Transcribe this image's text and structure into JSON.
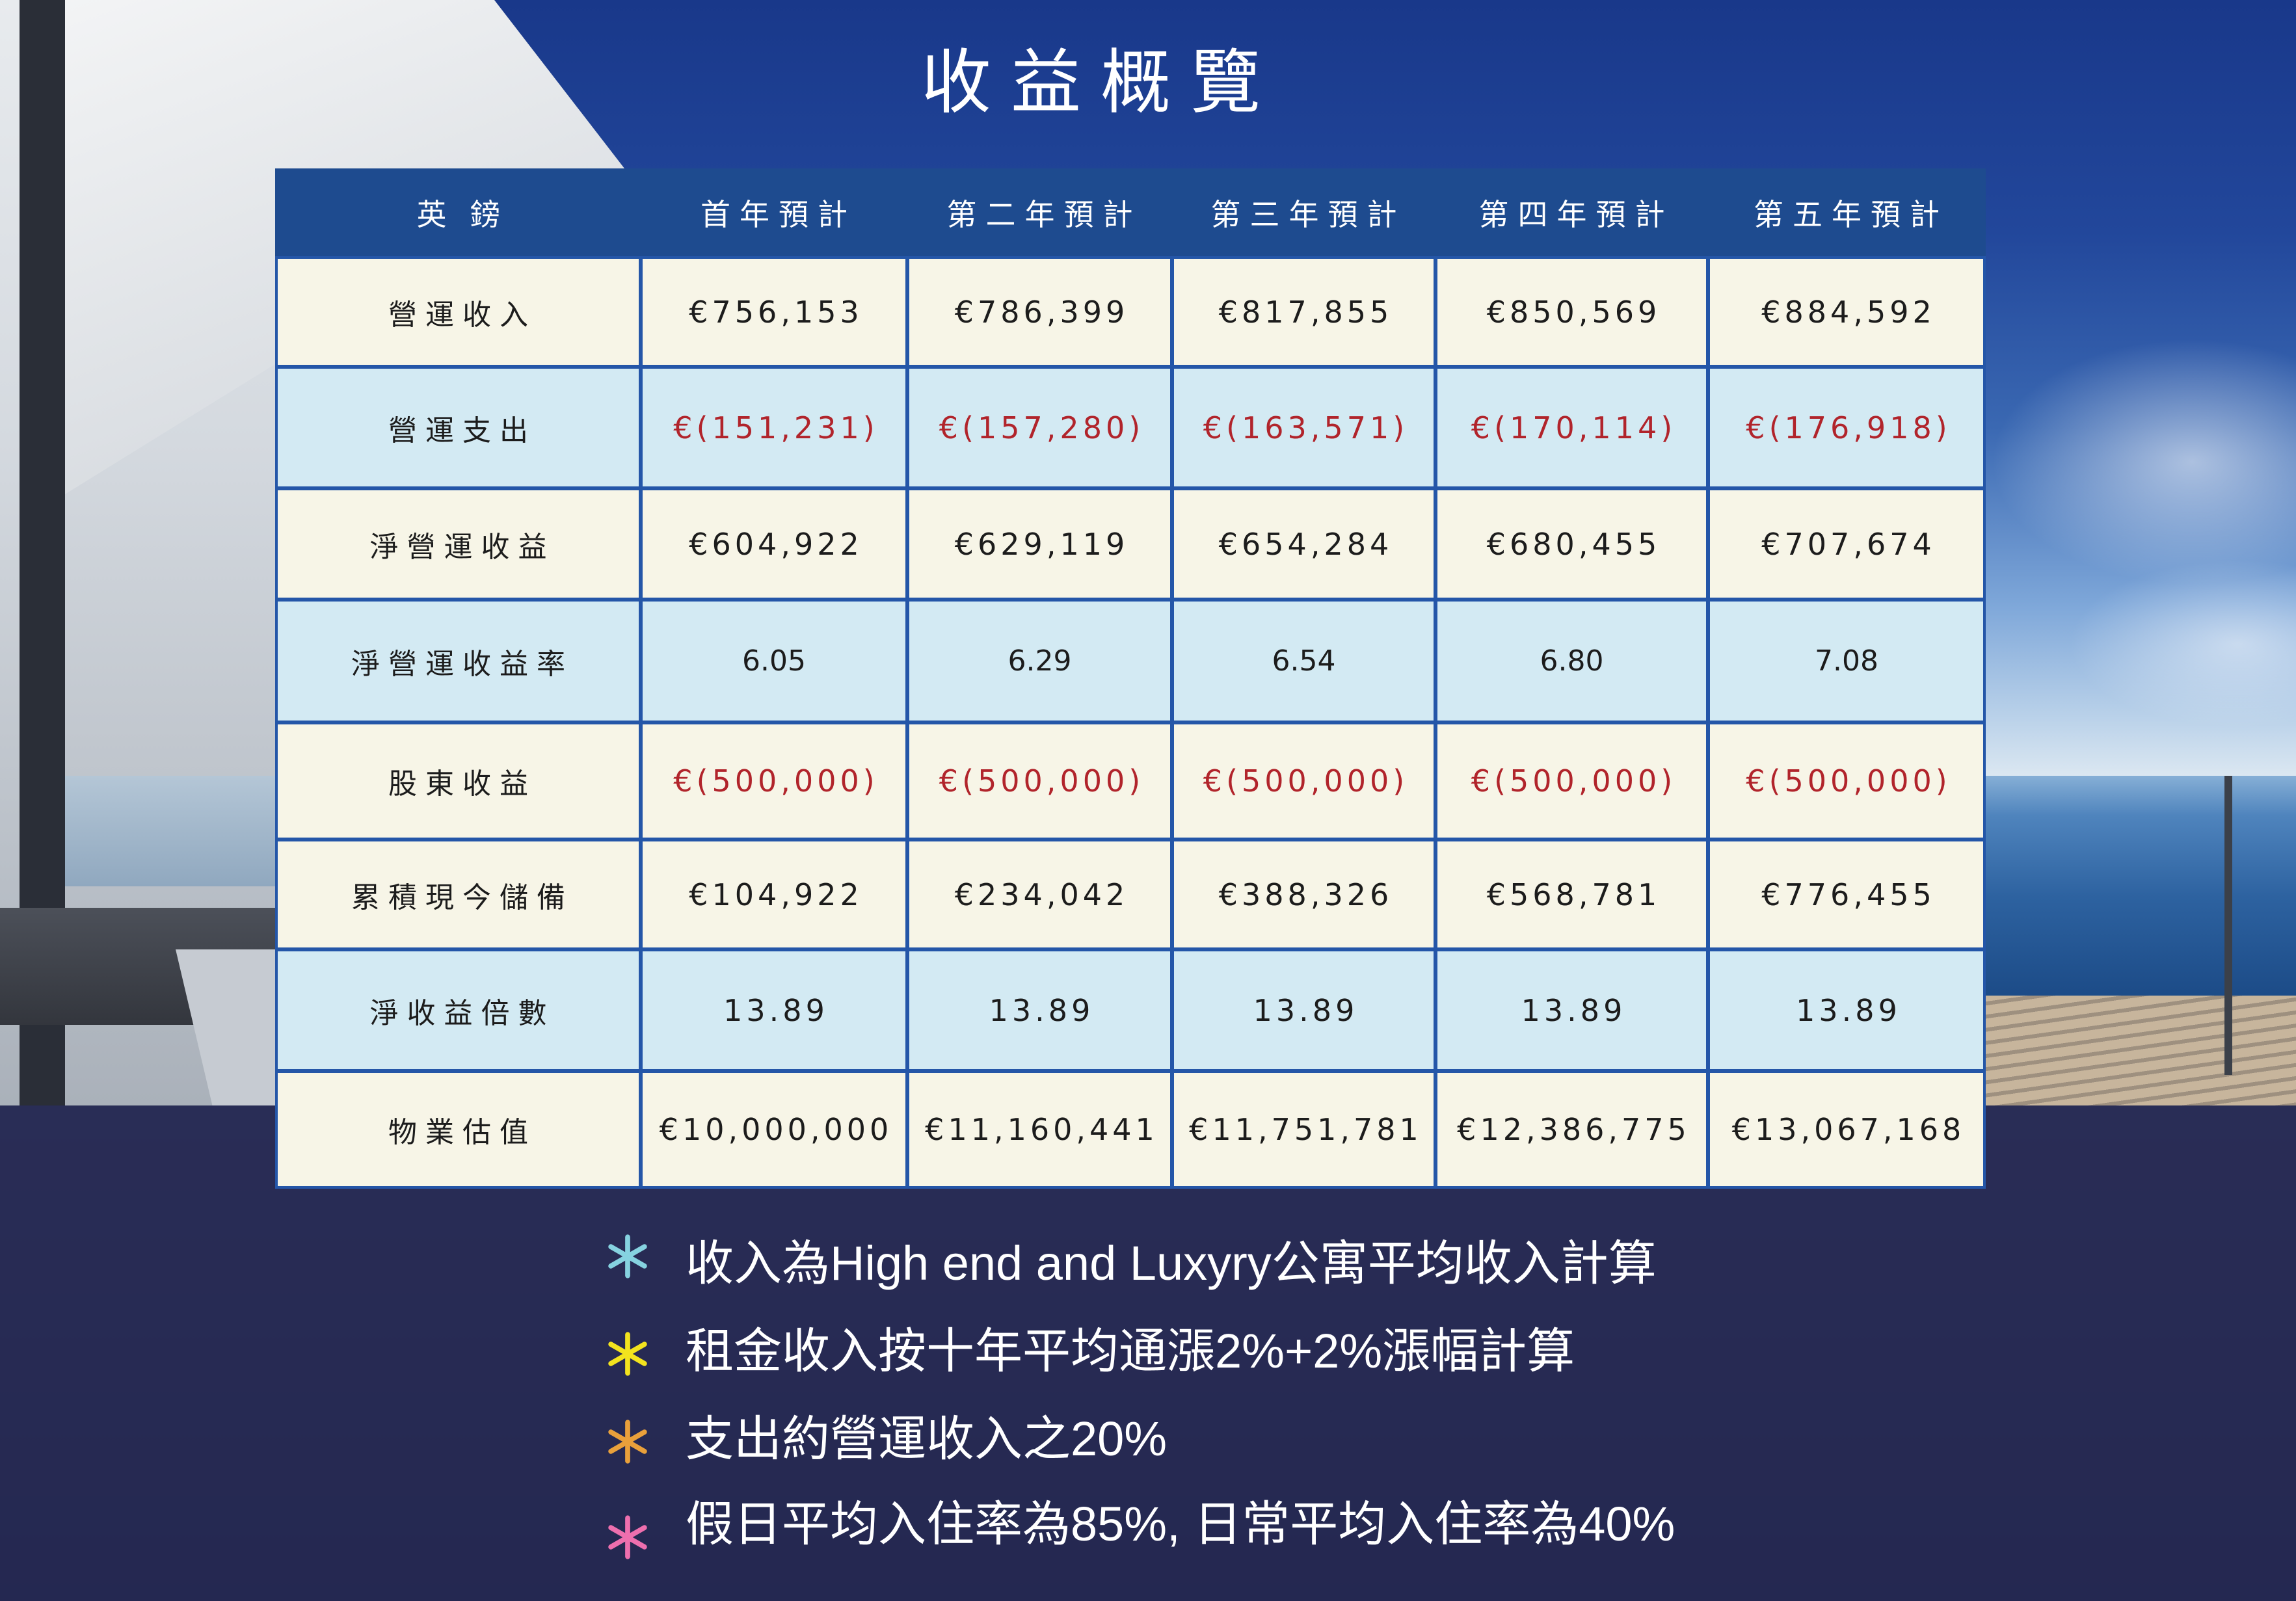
{
  "title": "收益概覽",
  "colors": {
    "header_bg": "#1e4b8f",
    "grid_line": "#2456a8",
    "row_cream": "#f7f5e7",
    "row_blue": "#d3eaf3",
    "negative_text": "#b1242b",
    "overlay_band": "#222652"
  },
  "table": {
    "headers": [
      "英鎊",
      "首年預計",
      "第二年預計",
      "第三年預計",
      "第四年預計",
      "第五年預計"
    ],
    "rows": [
      {
        "label": "營運收入",
        "negative": false,
        "shade": "#f7f5e7",
        "values": [
          "€756,153",
          "€786,399",
          "€817,855",
          "€850,569",
          "€884,592"
        ]
      },
      {
        "label": "營運支出",
        "negative": true,
        "shade": "#d3eaf3",
        "values": [
          "€(151,231)",
          "€(157,280)",
          "€(163,571)",
          "€(170,114)",
          "€(176,918)"
        ]
      },
      {
        "label": "淨營運收益",
        "negative": false,
        "shade": "#f7f5e7",
        "values": [
          "€604,922",
          "€629,119",
          "€654,284",
          "€680,455",
          "€707,674"
        ]
      },
      {
        "label": "淨營運收益率",
        "negative": false,
        "shade": "#d3eaf3",
        "values": [
          "6.05",
          "6.29",
          "6.54",
          "6.80",
          "7.08"
        ]
      },
      {
        "label": "股東收益",
        "negative": true,
        "shade": "#f7f5e7",
        "values": [
          "€(500,000)",
          "€(500,000)",
          "€(500,000)",
          "€(500,000)",
          "€(500,000)"
        ]
      },
      {
        "label": "累積現今儲備",
        "negative": false,
        "shade": "#f7f5e7",
        "values": [
          "€104,922",
          "€234,042",
          "€388,326",
          "€568,781",
          "€776,455"
        ]
      },
      {
        "label": "淨收益倍數",
        "negative": false,
        "shade": "#d3eaf3",
        "values": [
          "13.89",
          "13.89",
          "13.89",
          "13.89",
          "13.89"
        ]
      },
      {
        "label": "物業估值",
        "negative": false,
        "shade": "#f7f5e7",
        "values": [
          "€10,000,000",
          "€11,160,441",
          "€11,751,781",
          "€12,386,775",
          "€13,067,168"
        ]
      }
    ]
  },
  "notes": [
    {
      "icon": "asterisk-icon",
      "color": "#86d2e0",
      "text": "收入為High end and Luxyry公寓平均收入計算"
    },
    {
      "icon": "asterisk-icon",
      "color": "#f3e31e",
      "text": "租金收入按十年平均通漲2%+2%漲幅計算"
    },
    {
      "icon": "asterisk-icon",
      "color": "#e9a03b",
      "text": "支出約營運收入之20%"
    },
    {
      "icon": "asterisk-icon",
      "color": "#ee6fae",
      "text": "假日平均入住率為85%, 日常平均入住率為40%"
    }
  ]
}
